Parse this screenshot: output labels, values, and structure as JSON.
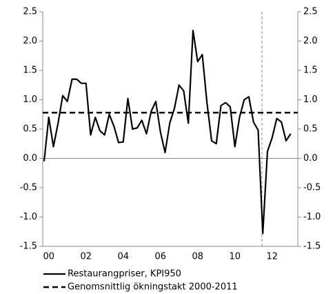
{
  "chart_data": {
    "type": "line",
    "categories": [
      null,
      "00",
      null,
      null,
      null,
      null,
      null,
      null,
      null,
      "02",
      null,
      null,
      null,
      null,
      null,
      null,
      null,
      "04",
      null,
      null,
      null,
      null,
      null,
      null,
      null,
      "06",
      null,
      null,
      null,
      null,
      null,
      null,
      null,
      "08",
      null,
      null,
      null,
      null,
      null,
      null,
      null,
      "10",
      null,
      null,
      null,
      null,
      null,
      null,
      null,
      "12",
      null,
      null,
      null,
      null
    ],
    "series": [
      {
        "name": "Restaurangpriser, KPI950",
        "color": "#000000",
        "values": [
          -0.05,
          0.7,
          0.2,
          0.6,
          1.07,
          0.97,
          1.35,
          1.35,
          1.28,
          1.28,
          0.4,
          0.7,
          0.47,
          0.4,
          0.75,
          0.55,
          0.27,
          0.28,
          1.02,
          0.5,
          0.52,
          0.65,
          0.42,
          0.8,
          0.97,
          0.45,
          0.1,
          0.6,
          0.85,
          1.25,
          1.15,
          0.6,
          2.18,
          1.65,
          1.77,
          0.95,
          0.3,
          0.25,
          0.9,
          0.95,
          0.88,
          0.2,
          0.7,
          1.0,
          1.05,
          0.62,
          0.48,
          -1.28,
          0.12,
          0.35,
          0.68,
          0.62,
          0.3,
          0.42
        ]
      }
    ],
    "reference_line": {
      "name": "Genomsnittlig ökningstakt 2000-2011",
      "value": 0.78,
      "color": "#000000",
      "dashed": true
    },
    "ylim": [
      -1.5,
      2.5
    ],
    "yticks": [
      {
        "value": -1.5,
        "label": "-1.5"
      },
      {
        "value": -1,
        "label": "-1.0"
      },
      {
        "value": -0.5,
        "label": "-0.5"
      },
      {
        "value": 0,
        "label": "0.0"
      },
      {
        "value": 0.5,
        "label": "0.5"
      },
      {
        "value": 1,
        "label": "1.0"
      },
      {
        "value": 1.5,
        "label": "1.5"
      },
      {
        "value": 2,
        "label": "2.0"
      },
      {
        "value": 2.5,
        "label": "2.5"
      }
    ],
    "secondary_y_axis": true
  }
}
